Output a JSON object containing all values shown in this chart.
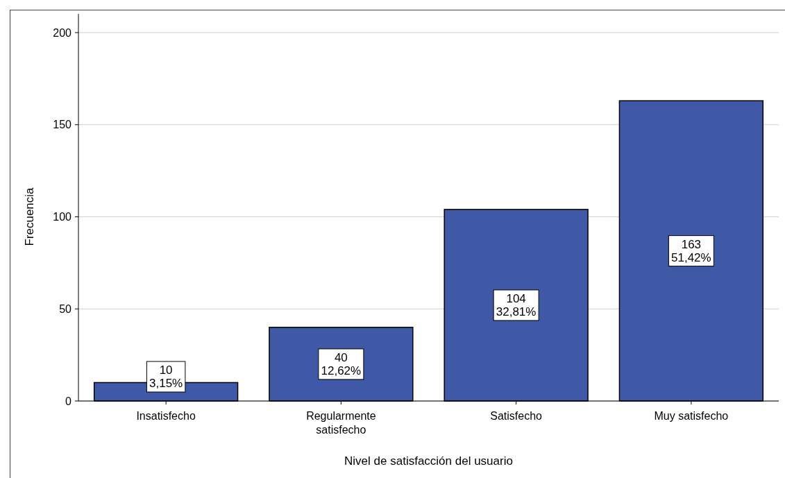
{
  "chart_data": {
    "type": "bar",
    "xlabel": "Nivel de satisfacción del usuario",
    "ylabel": "Frecuencia",
    "categories": [
      "Insatisfecho",
      "Regularmente satisfecho",
      "Satisfecho",
      "Muy satisfecho"
    ],
    "values": [
      10,
      40,
      104,
      163
    ],
    "value_labels": [
      "10\n3,15%",
      "40\n12,62%",
      "104\n32,81%",
      "163\n51,42%"
    ],
    "color": "#3f59a7",
    "ylim": [
      0,
      200
    ],
    "yticks": [
      0,
      50,
      100,
      150,
      200
    ],
    "grid": "y"
  }
}
